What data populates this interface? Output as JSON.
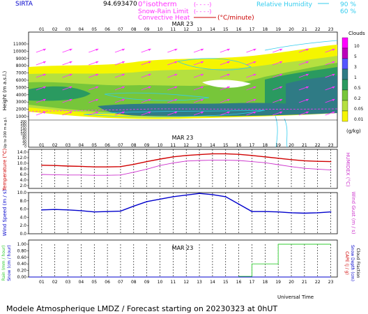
{
  "header": {
    "station": "SIRTA",
    "coords": "94.693470",
    "legend_isotherm": "0°isotherm",
    "legend_isotherm_sym": "(- - - -)",
    "legend_snow_rain": "Snow-Rain Limit",
    "legend_snow_rain_sym": "(- - - -)",
    "legend_convective": "Convective Heat",
    "legend_convective_unit": "(°C/minute)",
    "legend_rh": "Relative Humidity",
    "legend_rh_90": "90 %",
    "legend_rh_60": "60 %"
  },
  "footer": {
    "title": "Modele Atmospherique LMDZ / Forecast starting on 20230323 at 0hUT",
    "universal_time": "Universal Time"
  },
  "chart_data": [
    {
      "type": "heatmap",
      "title": "MAR 23",
      "ylabel": "Height (m a.s.l.)",
      "ylabel_low": "Up to 200 m a.g.l.",
      "hours": [
        "01",
        "02",
        "03",
        "04",
        "05",
        "06",
        "07",
        "08",
        "09",
        "10",
        "11",
        "12",
        "13",
        "14",
        "15",
        "16",
        "17",
        "18",
        "19",
        "20",
        "21",
        "22",
        "23"
      ],
      "y_ticks": [
        "11000",
        "10000",
        "9000",
        "8000",
        "7000",
        "6000",
        "5000",
        "4000",
        "3000",
        "2000",
        "1000"
      ],
      "y_ticks_low": [
        "200",
        "180",
        "160",
        "140",
        "120",
        "100",
        "80",
        "60",
        "40",
        "20",
        "0"
      ],
      "legend_title": "Clouds",
      "legend_unit": "(g/kg)",
      "legend_levels": [
        "10",
        "5",
        "3",
        "1",
        "0.5",
        "0.2",
        "0.05",
        "0.01"
      ],
      "legend_colors": [
        "#ff00ff",
        "#bb00bb",
        "#5555ff",
        "#2f7b85",
        "#2a9a60",
        "#77c63a",
        "#b5e040",
        "#f5f500"
      ]
    },
    {
      "type": "line",
      "title": "MAR 23",
      "ylabel": "Temperature (°C)",
      "ylabel_right": "HUMIDEX (°C)",
      "y_ticks": [
        "14.0",
        "12.0",
        "10.0",
        "8.0",
        "6.0",
        "4.0",
        "2.0"
      ],
      "ylim": [
        1,
        15
      ],
      "x": [
        "01",
        "02",
        "03",
        "04",
        "05",
        "06",
        "07",
        "08",
        "09",
        "10",
        "11",
        "12",
        "13",
        "14",
        "15",
        "16",
        "17",
        "18",
        "19",
        "20",
        "21",
        "22",
        "23"
      ],
      "series": [
        {
          "color": "#d00000",
          "values": [
            9.3,
            9.2,
            9.0,
            8.9,
            8.7,
            8.7,
            8.8,
            9.6,
            10.6,
            11.5,
            12.3,
            12.8,
            13.1,
            13.4,
            13.4,
            13.2,
            12.8,
            12.3,
            11.8,
            11.3,
            10.9,
            10.7,
            10.6
          ]
        },
        {
          "color": "#cc33cc",
          "values": [
            6.0,
            5.9,
            5.8,
            5.8,
            5.7,
            5.7,
            5.8,
            6.8,
            7.9,
            9.2,
            10.1,
            10.8,
            11.0,
            11.1,
            11.1,
            11.0,
            10.6,
            10.2,
            9.5,
            8.8,
            8.2,
            7.9,
            7.6
          ]
        }
      ]
    },
    {
      "type": "line",
      "ylabel": "Wind Speed (m / s)",
      "ylabel_right": "Wind Gust (m / s)",
      "y_ticks": [
        "10.0",
        "8.0",
        "6.0",
        "4.0",
        "2.0",
        "0.0"
      ],
      "ylim": [
        0,
        10
      ],
      "x": [
        "01",
        "02",
        "03",
        "04",
        "05",
        "06",
        "07",
        "08",
        "09",
        "10",
        "11",
        "12",
        "13",
        "14",
        "15",
        "16",
        "17",
        "18",
        "19",
        "20",
        "21",
        "22",
        "23"
      ],
      "series": [
        {
          "color": "#0000cc",
          "values": [
            5.8,
            5.9,
            5.8,
            5.6,
            5.3,
            5.4,
            5.5,
            6.7,
            7.8,
            8.4,
            9.0,
            9.4,
            9.8,
            9.5,
            9.0,
            7.2,
            5.4,
            5.4,
            5.3,
            5.1,
            5.0,
            5.1,
            5.3
          ]
        }
      ]
    },
    {
      "type": "line",
      "title": "MAR 23",
      "xlabel": "Universal Time",
      "ylabel": "Rain (mm / hour)",
      "ylabel2": "Snow (cm / hour)",
      "ylabel_right": "CAPE (J / g)",
      "ylabel_right2": "Snow Depth (cm)",
      "ylabel_right3": "Cloud Fraction",
      "y_ticks": [
        "1.00",
        "0.80",
        "0.60",
        "0.40",
        "0.20",
        "0.00"
      ],
      "ylim": [
        0,
        1
      ],
      "x": [
        "01",
        "02",
        "03",
        "04",
        "05",
        "06",
        "07",
        "08",
        "09",
        "10",
        "11",
        "12",
        "13",
        "14",
        "15",
        "16",
        "17",
        "18",
        "19",
        "20",
        "21",
        "22",
        "23"
      ],
      "series": [
        {
          "color": "#33cc33",
          "values": [
            0,
            0,
            0,
            0,
            0,
            0,
            0,
            0,
            0,
            0,
            0,
            0,
            0,
            0,
            0,
            0,
            0.02,
            0.4,
            0.4,
            1.0,
            1.0,
            1.0,
            1.0
          ]
        },
        {
          "color": "#0000cc",
          "values": [
            0,
            0,
            0,
            0,
            0,
            0,
            0,
            0,
            0,
            0,
            0,
            0,
            0,
            0,
            0,
            0,
            0,
            0,
            0,
            0,
            0,
            0,
            0
          ]
        }
      ]
    }
  ]
}
